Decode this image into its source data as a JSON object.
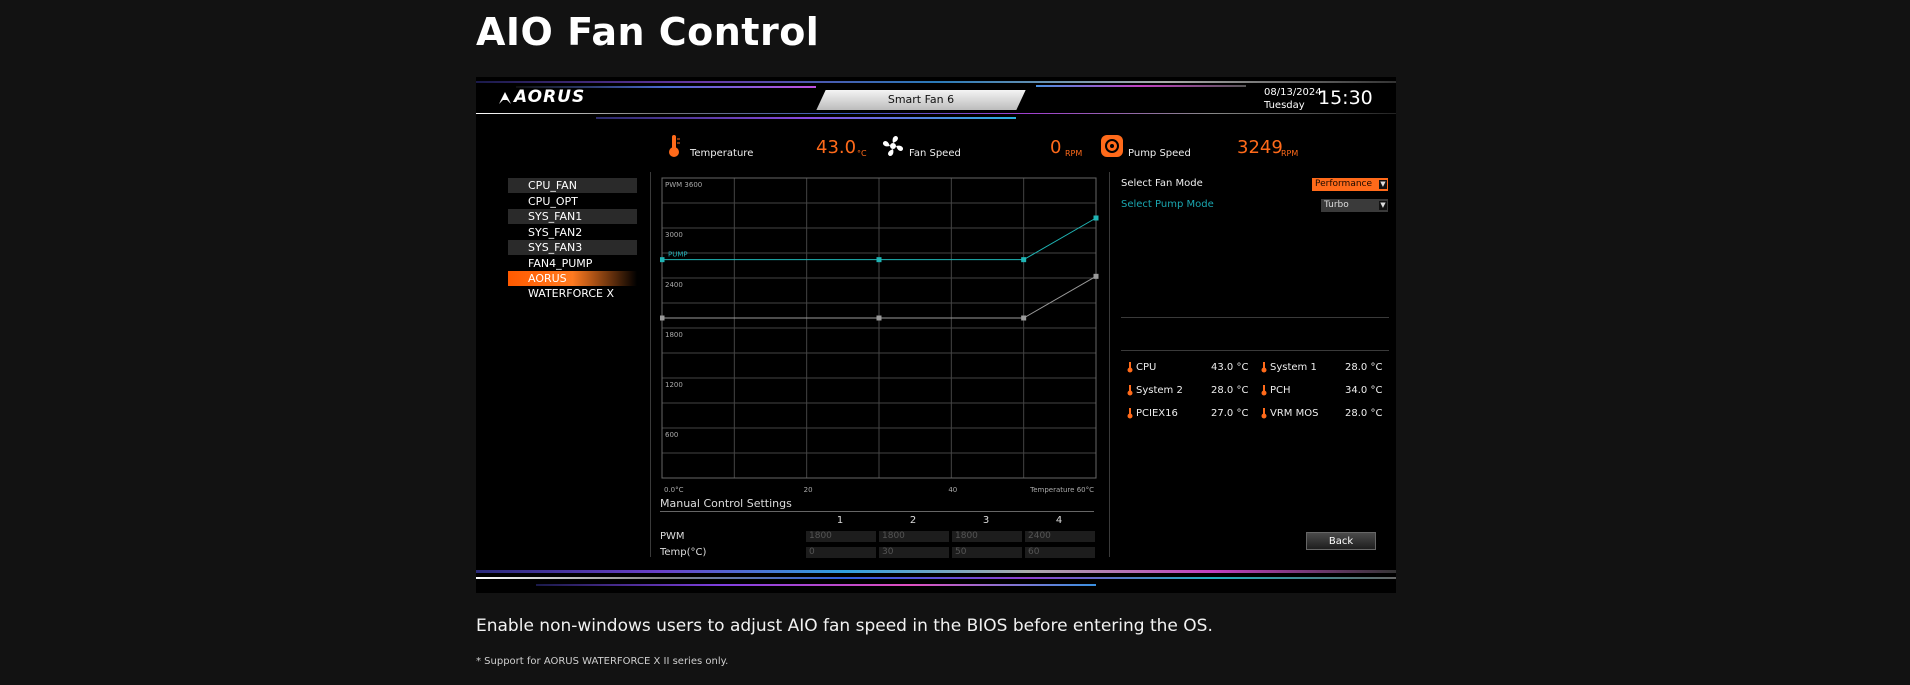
{
  "page": {
    "title": "AIO Fan Control",
    "description": "Enable non-windows users to adjust AIO fan speed in the BIOS before entering the OS.",
    "note": "* Support for AORUS WATERFORCE X II series only."
  },
  "bios": {
    "brand": "AORUS",
    "tab_title": "Smart Fan 6",
    "date": "08/13/2024",
    "day": "Tuesday",
    "time": "15:30",
    "stats": {
      "temperature": {
        "label": "Temperature",
        "value": "43.0",
        "unit": "°C",
        "icon": "thermometer-icon"
      },
      "fan_speed": {
        "label": "Fan Speed",
        "value": "0",
        "unit": "RPM",
        "icon": "fan-icon"
      },
      "pump_speed": {
        "label": "Pump Speed",
        "value": "3249",
        "unit": "RPM",
        "icon": "pump-icon"
      }
    },
    "fans": [
      {
        "label": "CPU_FAN"
      },
      {
        "label": "CPU_OPT"
      },
      {
        "label": "SYS_FAN1"
      },
      {
        "label": "SYS_FAN2"
      },
      {
        "label": "SYS_FAN3"
      },
      {
        "label": "FAN4_PUMP"
      },
      {
        "label": "AORUS WATERFORCE X",
        "active": true
      }
    ],
    "fan_mode": {
      "label": "Select Fan Mode",
      "value": "Performance"
    },
    "pump_mode": {
      "label": "Select Pump Mode",
      "value": "Turbo"
    },
    "sensors": [
      {
        "name": "CPU",
        "value": "43.0 °C"
      },
      {
        "name": "System 1",
        "value": "28.0 °C"
      },
      {
        "name": "System 2",
        "value": "28.0 °C"
      },
      {
        "name": "PCH",
        "value": "34.0 °C"
      },
      {
        "name": "PCIEX16",
        "value": "27.0 °C"
      },
      {
        "name": "VRM MOS",
        "value": "28.0 °C"
      }
    ],
    "manual": {
      "title": "Manual Control Settings",
      "columns": [
        "1",
        "2",
        "3",
        "4"
      ],
      "pwm_label": "PWM",
      "temp_label": "Temp(°C)",
      "pwm": [
        "1800",
        "1800",
        "1800",
        "2400"
      ],
      "temp": [
        "0",
        "30",
        "50",
        "60"
      ]
    },
    "back_label": "Back",
    "colors": {
      "accent": "#ff6a1a",
      "pump_curve": "#1fb5b5",
      "fan_curve": "#9a9a9a",
      "pump_label": "#22b0b8"
    }
  },
  "chart_data": {
    "type": "line",
    "x_labels": [
      "0.0°C",
      "20",
      "40",
      "Temperature 60°C"
    ],
    "y_labels": [
      "PWM 3600",
      "3000",
      "2400",
      "1800",
      "1200",
      "600"
    ],
    "xlim": [
      0,
      60
    ],
    "ylim": [
      0,
      3600
    ],
    "grid": true,
    "series": [
      {
        "name": "PUMP",
        "x": [
          0,
          30,
          50,
          60
        ],
        "y": [
          2620,
          2620,
          2620,
          3120
        ]
      },
      {
        "x": [
          0,
          30,
          50,
          60
        ],
        "y": [
          1920,
          1920,
          1920,
          2420
        ]
      }
    ]
  }
}
